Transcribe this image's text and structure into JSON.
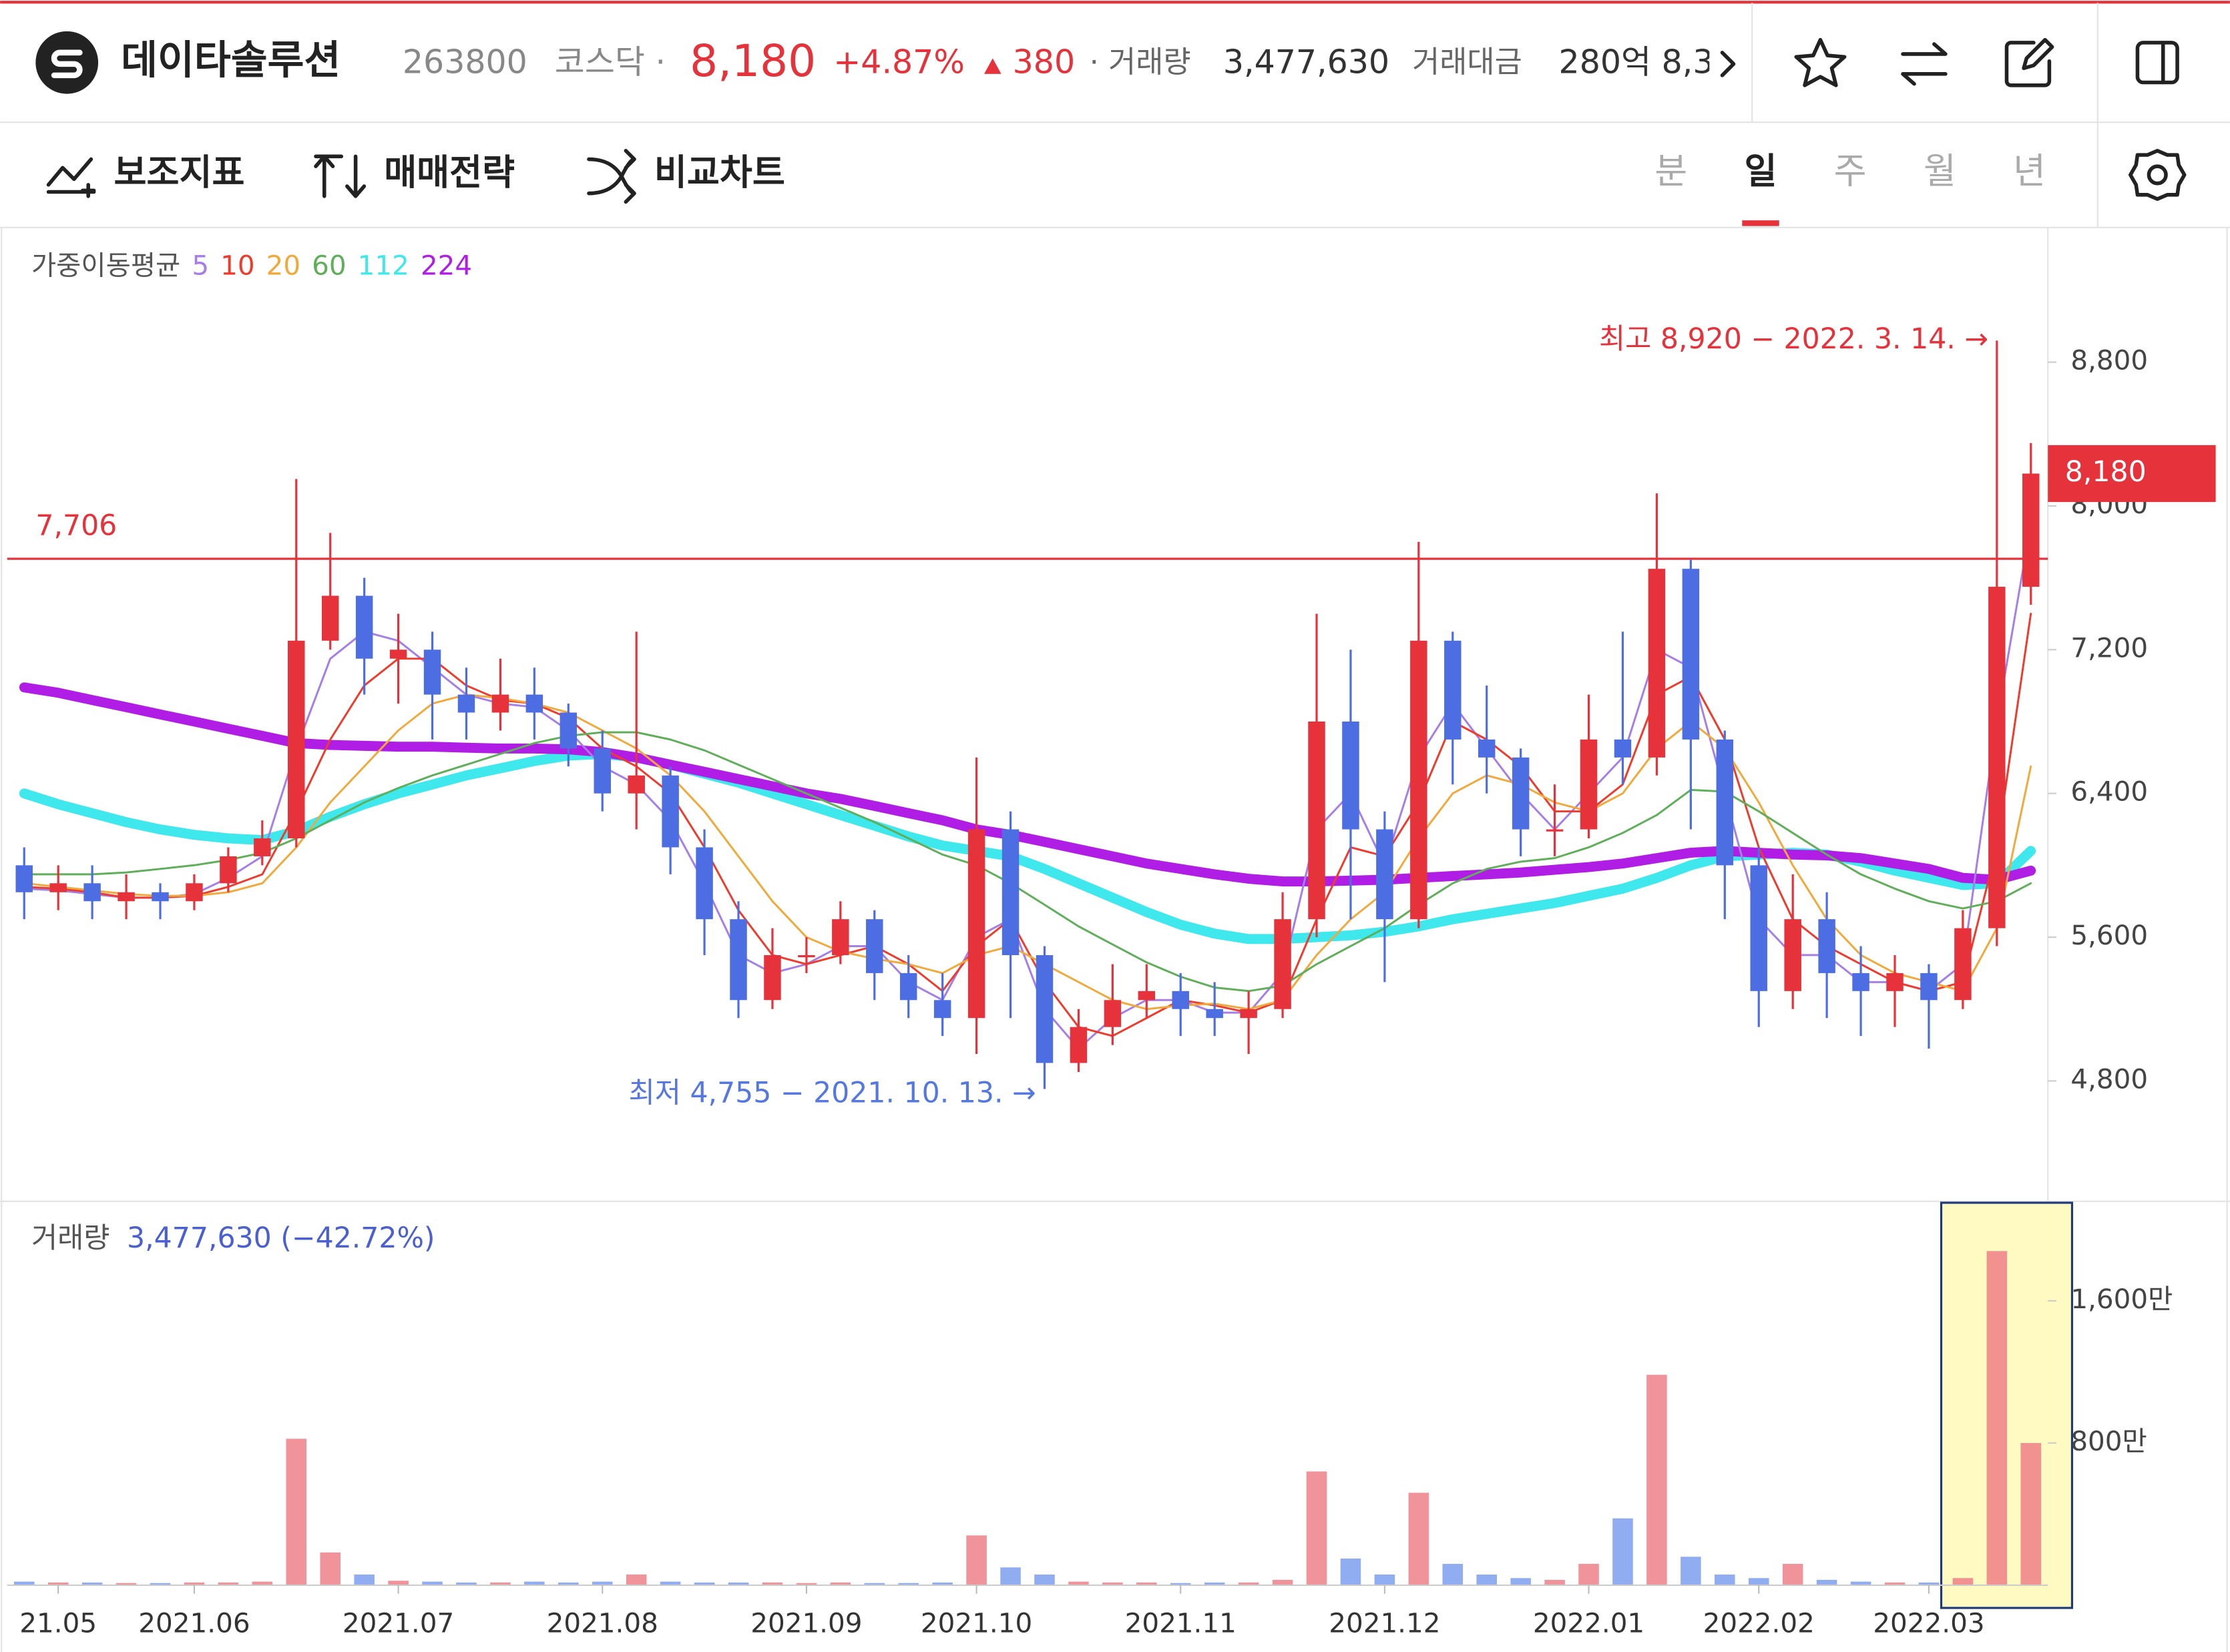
{
  "header": {
    "name": "데이타솔루션",
    "code": "263800",
    "market": "코스닥 ·",
    "price": "8,180",
    "change_pct": "+4.87%",
    "change": "380",
    "volume_label": "· 거래량",
    "volume": "3,477,630",
    "amount_label": "거래대금",
    "amount": "280억 8,3"
  },
  "toolbar": {
    "tools": [
      "보조지표",
      "매매전략",
      "비교차트"
    ],
    "periods": [
      "분",
      "일",
      "주",
      "월",
      "년"
    ],
    "active_period": "일"
  },
  "chart_data": [
    {
      "type": "candlestick",
      "indicator_title": "가중이동평균",
      "categories": [
        null,
        "21.05",
        null,
        null,
        null,
        "2021.06",
        null,
        null,
        null,
        null,
        null,
        "2021.07",
        null,
        null,
        null,
        null,
        null,
        "2021.08",
        null,
        null,
        null,
        null,
        null,
        "2021.09",
        null,
        null,
        null,
        null,
        "2021.10",
        null,
        null,
        null,
        null,
        null,
        "2021.11",
        null,
        null,
        null,
        null,
        null,
        "2021.12",
        null,
        null,
        null,
        null,
        null,
        "2022.01",
        null,
        null,
        null,
        null,
        "2022.02",
        null,
        null,
        null,
        null,
        "2022.03",
        null,
        null,
        null
      ],
      "open": [
        6000,
        5850,
        5900,
        5800,
        5850,
        5800,
        5900,
        6050,
        6150,
        7250,
        7500,
        7150,
        7200,
        6950,
        6850,
        6950,
        6850,
        6650,
        6400,
        6500,
        6100,
        5700,
        5250,
        5500,
        5500,
        5700,
        5400,
        5250,
        5150,
        6200,
        5500,
        4900,
        5100,
        5250,
        5300,
        5200,
        5150,
        5200,
        5700,
        6800,
        6200,
        5700,
        7250,
        6700,
        6600,
        6200,
        6200,
        6700,
        6600,
        7650,
        6700,
        6000,
        5300,
        5700,
        5400,
        5300,
        5400,
        5250,
        5650,
        7550
      ],
      "high": [
        6100,
        6000,
        6000,
        5950,
        5900,
        5950,
        6100,
        6250,
        8150,
        7850,
        7600,
        7400,
        7300,
        7100,
        7150,
        7100,
        6900,
        6750,
        7300,
        6550,
        6200,
        5800,
        5650,
        5600,
        5800,
        5750,
        5500,
        5400,
        6600,
        6300,
        5550,
        5200,
        5450,
        5450,
        5400,
        5350,
        5300,
        5850,
        7400,
        7200,
        6300,
        7800,
        7300,
        7000,
        6650,
        6450,
        6950,
        7300,
        8070,
        7700,
        6750,
        6100,
        5950,
        5850,
        5550,
        5500,
        5450,
        5750,
        8920,
        8350
      ],
      "low": [
        5700,
        5750,
        5700,
        5700,
        5700,
        5750,
        5850,
        6000,
        6100,
        7200,
        6950,
        6900,
        6700,
        6700,
        6750,
        6700,
        6550,
        6300,
        6200,
        5950,
        5500,
        5150,
        5200,
        5400,
        5450,
        5250,
        5150,
        5050,
        4950,
        5150,
        4755,
        4850,
        5000,
        5150,
        5050,
        5050,
        4950,
        5150,
        5600,
        5700,
        5350,
        5650,
        6450,
        6400,
        6050,
        6050,
        6150,
        6450,
        6500,
        6200,
        5700,
        5100,
        5200,
        5150,
        5050,
        5100,
        4980,
        5200,
        5550,
        7450
      ],
      "close": [
        5850,
        5900,
        5800,
        5850,
        5800,
        5900,
        6050,
        6150,
        7250,
        7500,
        7150,
        7200,
        6950,
        6850,
        6950,
        6850,
        6650,
        6400,
        6500,
        6100,
        5700,
        5250,
        5500,
        5500,
        5700,
        5400,
        5250,
        5150,
        6200,
        5500,
        4900,
        5100,
        5250,
        5300,
        5200,
        5150,
        5200,
        5700,
        6800,
        6200,
        5700,
        7250,
        6700,
        6600,
        6200,
        6200,
        6700,
        6600,
        7650,
        6700,
        6000,
        5300,
        5700,
        5400,
        5300,
        5400,
        5250,
        5650,
        7550,
        8180
      ],
      "up_color": "#e5323b",
      "down_color": "#4d6de3",
      "series": [
        {
          "name": "5",
          "color": "#a57ee8",
          "line_width": 1.4,
          "values": [
            5870,
            5860,
            5840,
            5820,
            5820,
            5840,
            5930,
            6050,
            6650,
            7150,
            7300,
            7250,
            7100,
            6950,
            6900,
            6880,
            6750,
            6550,
            6450,
            6250,
            5900,
            5500,
            5400,
            5450,
            5550,
            5550,
            5350,
            5250,
            5600,
            5700,
            5200,
            4980,
            5150,
            5250,
            5250,
            5180,
            5180,
            5400,
            6200,
            6400,
            6000,
            6600,
            6900,
            6650,
            6400,
            6200,
            6400,
            6600,
            7200,
            7100,
            6400,
            5700,
            5500,
            5500,
            5350,
            5350,
            5300,
            5450,
            6800,
            7900
          ]
        },
        {
          "name": "10",
          "color": "#ef3b2c",
          "line_width": 1.4,
          "values": [
            5880,
            5870,
            5850,
            5820,
            5820,
            5830,
            5880,
            5950,
            6300,
            6700,
            7000,
            7150,
            7150,
            7000,
            6920,
            6900,
            6820,
            6650,
            6550,
            6400,
            6100,
            5750,
            5500,
            5450,
            5500,
            5550,
            5450,
            5300,
            5550,
            5700,
            5350,
            5100,
            5050,
            5150,
            5250,
            5220,
            5180,
            5250,
            5700,
            6100,
            6050,
            6350,
            6800,
            6700,
            6550,
            6300,
            6300,
            6450,
            6950,
            7050,
            6700,
            6100,
            5700,
            5550,
            5450,
            5350,
            5300,
            5350,
            6100,
            7400
          ]
        },
        {
          "name": "20",
          "color": "#f2a93b",
          "line_width": 1.4,
          "values": [
            5900,
            5880,
            5860,
            5840,
            5830,
            5830,
            5850,
            5900,
            6100,
            6350,
            6550,
            6750,
            6900,
            6950,
            6930,
            6900,
            6850,
            6750,
            6650,
            6500,
            6300,
            6050,
            5800,
            5600,
            5520,
            5480,
            5450,
            5400,
            5500,
            5550,
            5450,
            5350,
            5250,
            5200,
            5220,
            5230,
            5200,
            5250,
            5500,
            5700,
            5850,
            6150,
            6400,
            6500,
            6450,
            6350,
            6300,
            6400,
            6650,
            6800,
            6650,
            6350,
            6000,
            5700,
            5500,
            5400,
            5350,
            5300,
            5650,
            6550
          ]
        },
        {
          "name": "60",
          "color": "#5fae5a",
          "line_width": 1.4,
          "values": [
            5950,
            5950,
            5950,
            5960,
            5980,
            6000,
            6030,
            6070,
            6150,
            6250,
            6350,
            6430,
            6500,
            6560,
            6620,
            6680,
            6720,
            6740,
            6740,
            6700,
            6640,
            6560,
            6480,
            6400,
            6320,
            6240,
            6150,
            6060,
            6000,
            5900,
            5780,
            5660,
            5560,
            5460,
            5380,
            5320,
            5300,
            5330,
            5450,
            5550,
            5650,
            5780,
            5900,
            5980,
            6020,
            6040,
            6100,
            6180,
            6280,
            6420,
            6410,
            6300,
            6180,
            6060,
            5950,
            5870,
            5800,
            5760,
            5800,
            5900
          ]
        },
        {
          "name": "112",
          "color": "#3ee8ec",
          "line_width": 7,
          "values": [
            6400,
            6340,
            6290,
            6240,
            6200,
            6170,
            6150,
            6140,
            6190,
            6270,
            6340,
            6400,
            6450,
            6500,
            6540,
            6580,
            6610,
            6620,
            6600,
            6560,
            6510,
            6460,
            6400,
            6340,
            6280,
            6220,
            6160,
            6110,
            6080,
            6050,
            5980,
            5900,
            5820,
            5740,
            5670,
            5620,
            5590,
            5590,
            5600,
            5610,
            5630,
            5660,
            5700,
            5730,
            5760,
            5790,
            5830,
            5870,
            5930,
            6000,
            6050,
            6060,
            6070,
            6060,
            6020,
            5970,
            5930,
            5890,
            5900,
            6080
          ]
        },
        {
          "name": "224",
          "color": "#b01ee6",
          "line_width": 7,
          "values": [
            6990,
            6960,
            6920,
            6880,
            6840,
            6800,
            6760,
            6720,
            6680,
            6670,
            6665,
            6660,
            6660,
            6655,
            6650,
            6650,
            6645,
            6630,
            6600,
            6560,
            6520,
            6480,
            6440,
            6400,
            6370,
            6330,
            6290,
            6250,
            6200,
            6170,
            6130,
            6090,
            6050,
            6010,
            5980,
            5950,
            5925,
            5910,
            5910,
            5915,
            5920,
            5930,
            5940,
            5950,
            5960,
            5975,
            5990,
            6010,
            6040,
            6070,
            6080,
            6070,
            6060,
            6055,
            6040,
            6010,
            5980,
            5930,
            5920,
            5970
          ]
        }
      ],
      "ylim": [
        4130,
        9510
      ],
      "yticks": [
        {
          "value": 4800,
          "label": "4,800"
        },
        {
          "value": 5600,
          "label": "5,600"
        },
        {
          "value": 6400,
          "label": "6,400"
        },
        {
          "value": 7200,
          "label": "7,200"
        },
        {
          "value": 8000,
          "label": "8,000"
        },
        {
          "value": 8800,
          "label": "8,800"
        }
      ],
      "reference_line": {
        "value": 7706,
        "label": "7,706",
        "color": "#e5323b"
      },
      "last_price": {
        "value": 8180,
        "label": "8,180",
        "color": "#e5323b"
      },
      "annotations": [
        {
          "text": "최고 8,920 − 2022. 3. 14. →",
          "value": 8920,
          "color": "#e5323b"
        },
        {
          "text": "최저 4,755 − 2021. 10. 13. →",
          "value": 4755,
          "color": "#5577e0"
        }
      ]
    },
    {
      "type": "bar",
      "title": "거래량",
      "subtitle": "3,477,630 (−42.72%)",
      "values": [
        20,
        15,
        15,
        12,
        12,
        15,
        15,
        20,
        824,
        184,
        60,
        25,
        20,
        15,
        15,
        20,
        15,
        20,
        60,
        20,
        15,
        15,
        15,
        12,
        15,
        12,
        12,
        15,
        280,
        100,
        60,
        20,
        15,
        15,
        12,
        15,
        15,
        30,
        640,
        150,
        60,
        520,
        120,
        60,
        40,
        30,
        120,
        376,
        1184,
        160,
        60,
        40,
        120,
        30,
        20,
        15,
        15,
        40,
        1880,
        800
      ],
      "up_color": "#ee8088",
      "down_color": "#7e9ff0",
      "ylim": [
        0,
        2136
      ],
      "yticks": [
        {
          "value": 800,
          "label": "800만"
        },
        {
          "value": 1600,
          "label": "1,600만"
        }
      ]
    }
  ]
}
